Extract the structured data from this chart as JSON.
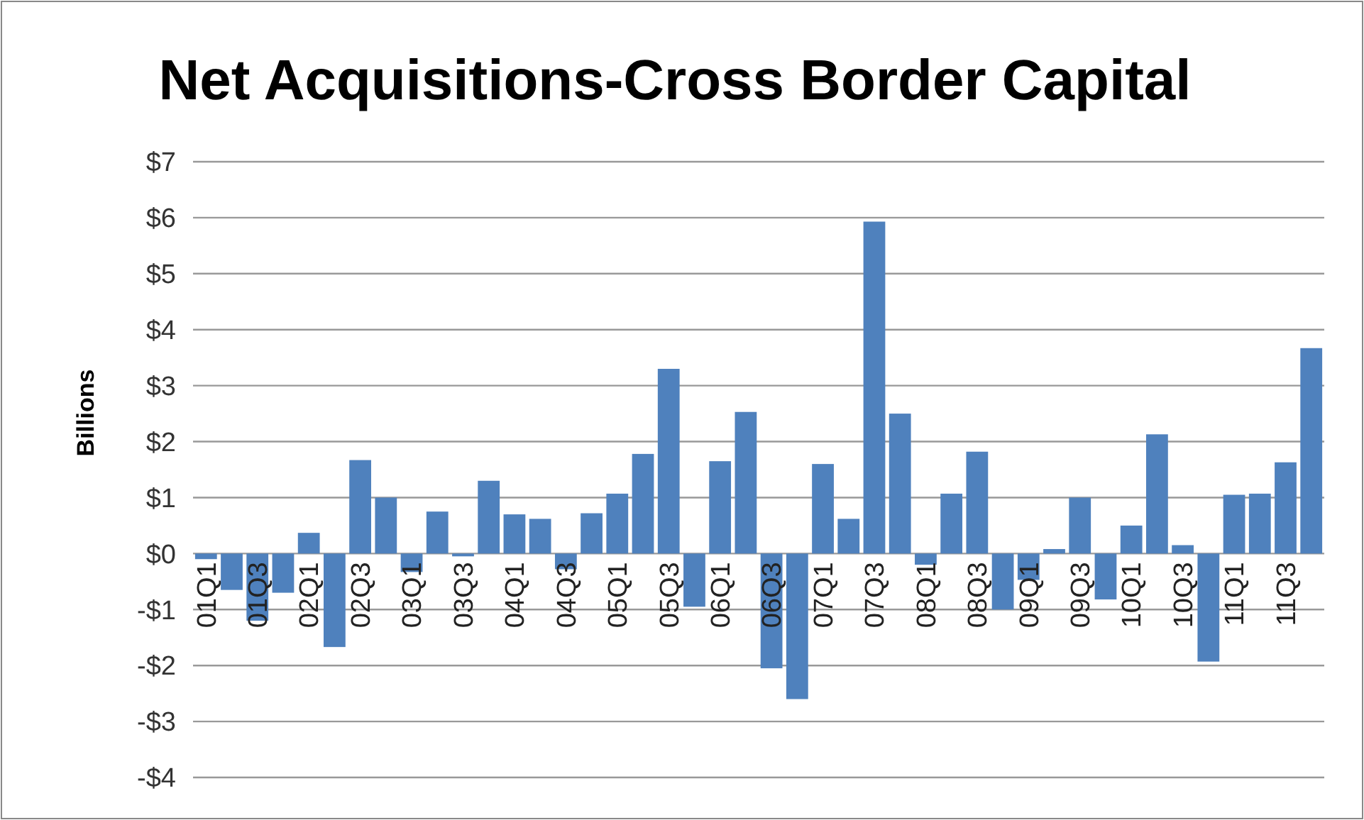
{
  "chart_data": {
    "type": "bar",
    "title": "Net Acquisitions-Cross Border Capital",
    "ylabel": "Billions",
    "categories": [
      "01Q1",
      null,
      "01Q3",
      null,
      "02Q1",
      null,
      "02Q3",
      null,
      "03Q1",
      null,
      "03Q3",
      null,
      "04Q1",
      null,
      "04Q3",
      null,
      "05Q1",
      null,
      "05Q3",
      null,
      "06Q1",
      null,
      "06Q3",
      null,
      "07Q1",
      null,
      "07Q3",
      null,
      "08Q1",
      null,
      "08Q3",
      null,
      "09Q1",
      null,
      "09Q3",
      null,
      "10Q1",
      null,
      "10Q3",
      null,
      "11Q1",
      null,
      "11Q3",
      null
    ],
    "series": [
      {
        "color": "#4f81bd",
        "values": [
          -0.1,
          -0.65,
          -1.2,
          -0.7,
          0.37,
          -1.67,
          1.67,
          1.0,
          -0.33,
          0.75,
          -0.05,
          1.3,
          0.7,
          0.62,
          -0.28,
          0.72,
          1.07,
          1.78,
          3.3,
          -0.95,
          1.65,
          2.53,
          -2.05,
          -2.6,
          1.6,
          0.62,
          5.93,
          2.5,
          -0.2,
          1.07,
          1.82,
          -1.0,
          -0.47,
          0.08,
          1.0,
          -0.82,
          0.5,
          2.13,
          0.15,
          -1.93,
          1.05,
          1.07,
          1.63,
          3.67
        ]
      }
    ],
    "ylim": [
      -4,
      7
    ],
    "yticks": [
      {
        "value": -4,
        "label": "-$4"
      },
      {
        "value": -3,
        "label": "-$3"
      },
      {
        "value": -2,
        "label": "-$2"
      },
      {
        "value": -1,
        "label": "-$1"
      },
      {
        "value": 0,
        "label": "$0"
      },
      {
        "value": 1,
        "label": "$1"
      },
      {
        "value": 2,
        "label": "$2"
      },
      {
        "value": 3,
        "label": "$3"
      },
      {
        "value": 4,
        "label": "$4"
      },
      {
        "value": 5,
        "label": "$5"
      },
      {
        "value": 6,
        "label": "$6"
      },
      {
        "value": 7,
        "label": "$7"
      }
    ],
    "grid": "y"
  }
}
